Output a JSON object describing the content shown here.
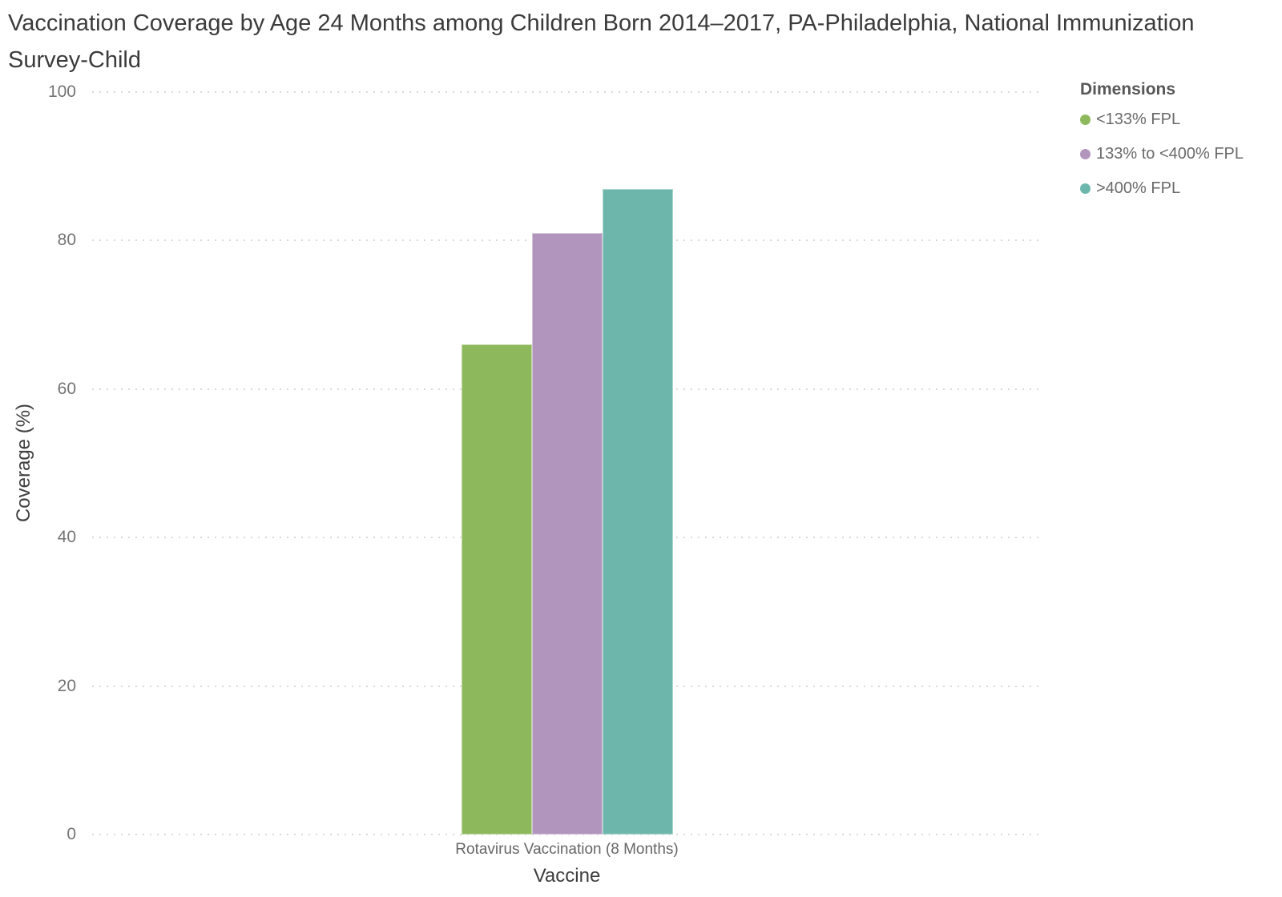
{
  "chart": {
    "title": "Vaccination Coverage by Age 24 Months among Children Born 2014–2017, PA-Philadelphia, National Immunization Survey-Child"
  },
  "chart_data": {
    "type": "bar",
    "title": "Vaccination Coverage by Age 24 Months among Children Born 2014–2017, PA-Philadelphia, National Immunization Survey-Child",
    "categories": [
      "Rotavirus Vaccination (8 Months)"
    ],
    "series": [
      {
        "name": "<133% FPL",
        "values": [
          66
        ],
        "color": "#8EB85C"
      },
      {
        "name": "133% to <400% FPL",
        "values": [
          81
        ],
        "color": "#B195BD"
      },
      {
        "name": ">400% FPL",
        "values": [
          87
        ],
        "color": "#6CB6AC"
      }
    ],
    "xlabel": "Vaccine",
    "ylabel": "Coverage (%)",
    "ylim": [
      0,
      100
    ],
    "yticks": [
      0,
      20,
      40,
      60,
      80,
      100
    ],
    "grid": "dotted-horizontal",
    "legend_position": "top-right",
    "legend_title": "Dimensions"
  }
}
